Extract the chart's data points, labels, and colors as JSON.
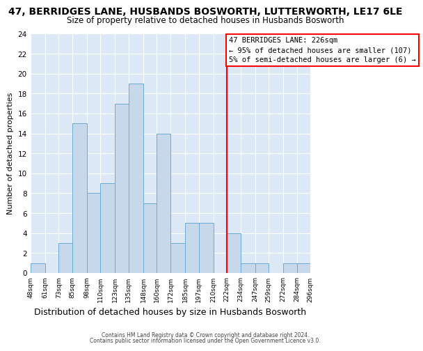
{
  "title": "47, BERRIDGES LANE, HUSBANDS BOSWORTH, LUTTERWORTH, LE17 6LE",
  "subtitle": "Size of property relative to detached houses in Husbands Bosworth",
  "xlabel": "Distribution of detached houses by size in Husbands Bosworth",
  "ylabel": "Number of detached properties",
  "bin_edges": [
    48,
    61,
    73,
    85,
    98,
    110,
    123,
    135,
    148,
    160,
    172,
    185,
    197,
    210,
    222,
    234,
    247,
    259,
    272,
    284,
    296
  ],
  "counts": [
    1,
    0,
    3,
    15,
    8,
    9,
    17,
    19,
    7,
    14,
    3,
    5,
    5,
    0,
    4,
    1,
    1,
    0,
    1,
    1
  ],
  "bar_color": "#c8d8eb",
  "bar_edge_color": "#6aaad4",
  "vline_x": 222,
  "vline_color": "red",
  "ylim": [
    0,
    24
  ],
  "yticks": [
    0,
    2,
    4,
    6,
    8,
    10,
    12,
    14,
    16,
    18,
    20,
    22,
    24
  ],
  "annotation_title": "47 BERRIDGES LANE: 226sqm",
  "annotation_line1": "← 95% of detached houses are smaller (107)",
  "annotation_line2": "5% of semi-detached houses are larger (6) →",
  "annotation_box_color": "#ffffff",
  "annotation_box_edge": "red",
  "footer1": "Contains HM Land Registry data © Crown copyright and database right 2024.",
  "footer2": "Contains public sector information licensed under the Open Government Licence v3.0.",
  "fig_bg_color": "#ffffff",
  "plot_bg_color": "#dce8f5",
  "grid_color": "#ffffff",
  "title_fontsize": 10,
  "subtitle_fontsize": 8.5,
  "xlabel_fontsize": 9,
  "ylabel_fontsize": 8,
  "tick_labels": [
    "48sqm",
    "61sqm",
    "73sqm",
    "85sqm",
    "98sqm",
    "110sqm",
    "123sqm",
    "135sqm",
    "148sqm",
    "160sqm",
    "172sqm",
    "185sqm",
    "197sqm",
    "210sqm",
    "222sqm",
    "234sqm",
    "247sqm",
    "259sqm",
    "272sqm",
    "284sqm",
    "296sqm"
  ]
}
